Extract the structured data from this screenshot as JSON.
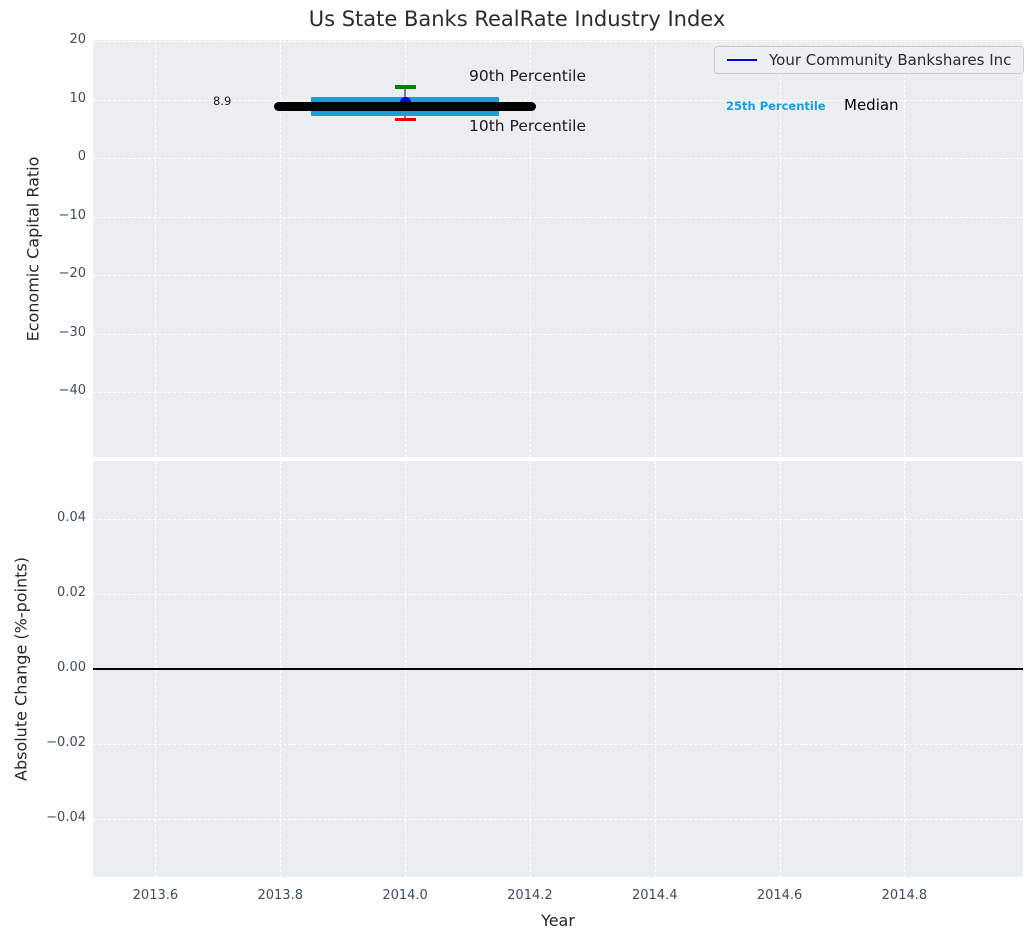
{
  "title": "Us State Banks RealRate Industry Index",
  "legend": {
    "items": [
      {
        "label": "Your Community Bankshares Inc",
        "color": "#0202dd"
      }
    ]
  },
  "annotations": {
    "value_label": "8.9",
    "p90_label": "90th Percentile",
    "p10_label": "10th Percentile",
    "p25_label": "25th Percentile",
    "median_label": "Median"
  },
  "colors": {
    "axes_bg": "#ebeef0",
    "grid": "#ffffff",
    "tick_text": "#3d4c63",
    "median_line": "#000000",
    "percentile_band": "#179ed9",
    "company_marker": "#0000e0",
    "cap_90th": "#007f00",
    "cap_10th": "#ef0000",
    "error_line": "#7f7f7f",
    "zero_line": "#000000",
    "p25_text": "#189fd9"
  },
  "chart_data": [
    {
      "type": "line",
      "panel": "top",
      "title": "Us State Banks RealRate Industry Index",
      "ylabel": "Economic Capital Ratio",
      "ylim": [
        -51.1,
        20.2
      ],
      "yticks": [
        20,
        10,
        0,
        -10,
        -20,
        -30,
        -40
      ],
      "ytick_labels": [
        "20",
        "10",
        "0",
        "−10",
        "−20",
        "−30",
        "−40"
      ],
      "xlim": [
        2013.5,
        2014.99
      ],
      "xticks": [
        2013.6,
        2013.8,
        2014.0,
        2014.2,
        2014.4,
        2014.6,
        2014.8
      ],
      "grid": true,
      "legend_position": "upper right",
      "series": [
        {
          "name": "Median",
          "style": "thick-black-line",
          "y": 8.9,
          "x_start": 2013.79,
          "x_end": 2014.21
        },
        {
          "name": "25th-75th Percentile Band",
          "style": "cyan-band",
          "y": 8.9,
          "x_start": 2013.85,
          "x_end": 2014.15
        }
      ],
      "company_point": {
        "name": "Your Community Bankshares Inc",
        "x": 2014.0,
        "y": 8.9,
        "p90": 12.2,
        "p10": 6.6
      }
    },
    {
      "type": "line",
      "panel": "bottom",
      "ylabel": "Absolute Change (%-points)",
      "xlabel": "Year",
      "ylim": [
        -0.0554,
        0.0554
      ],
      "yticks": [
        0.04,
        0.02,
        0.0,
        -0.02,
        -0.04
      ],
      "ytick_labels": [
        "0.04",
        "0.02",
        "0.00",
        "−0.02",
        "−0.04"
      ],
      "xlim": [
        2013.5,
        2014.99
      ],
      "xticks": [
        2013.6,
        2013.8,
        2014.0,
        2014.2,
        2014.4,
        2014.6,
        2014.8
      ],
      "xtick_labels": [
        "2013.6",
        "2013.8",
        "2014.0",
        "2014.2",
        "2014.4",
        "2014.6",
        "2014.8"
      ],
      "grid": true,
      "zero_line": 0.0,
      "series": []
    }
  ]
}
